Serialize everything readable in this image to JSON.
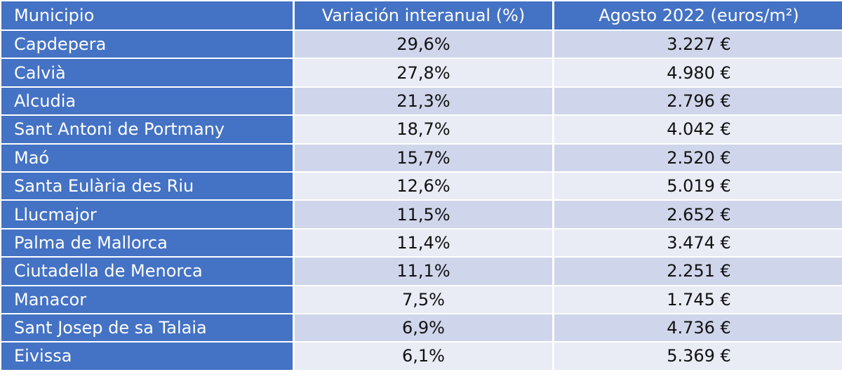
{
  "table": {
    "header": [
      "Municipio",
      "Variación interanual (%)",
      "Agosto 2022  (euros/m²)"
    ],
    "rows": [
      [
        "Capdepera",
        "29,6%",
        "3.227 €"
      ],
      [
        "Calvià",
        "27,8%",
        "4.980 €"
      ],
      [
        "Alcudia",
        "21,3%",
        "2.796 €"
      ],
      [
        "Sant Antoni de Portmany",
        "18,7%",
        "4.042 €"
      ],
      [
        "Maó",
        "15,7%",
        "2.520 €"
      ],
      [
        "Santa Eulària des Riu",
        "12,6%",
        "5.019 €"
      ],
      [
        "Llucmajor",
        "11,5%",
        "2.652 €"
      ],
      [
        "Palma de Mallorca",
        "11,4%",
        "3.474 €"
      ],
      [
        "Ciutadella de Menorca",
        "11,1%",
        "2.251 €"
      ],
      [
        "Manacor",
        "7,5%",
        "1.745 €"
      ],
      [
        "Sant Josep de sa Talaia",
        "6,9%",
        "4.736 €"
      ],
      [
        "Eivissa",
        "6,1%",
        "5.369 €"
      ]
    ]
  }
}
